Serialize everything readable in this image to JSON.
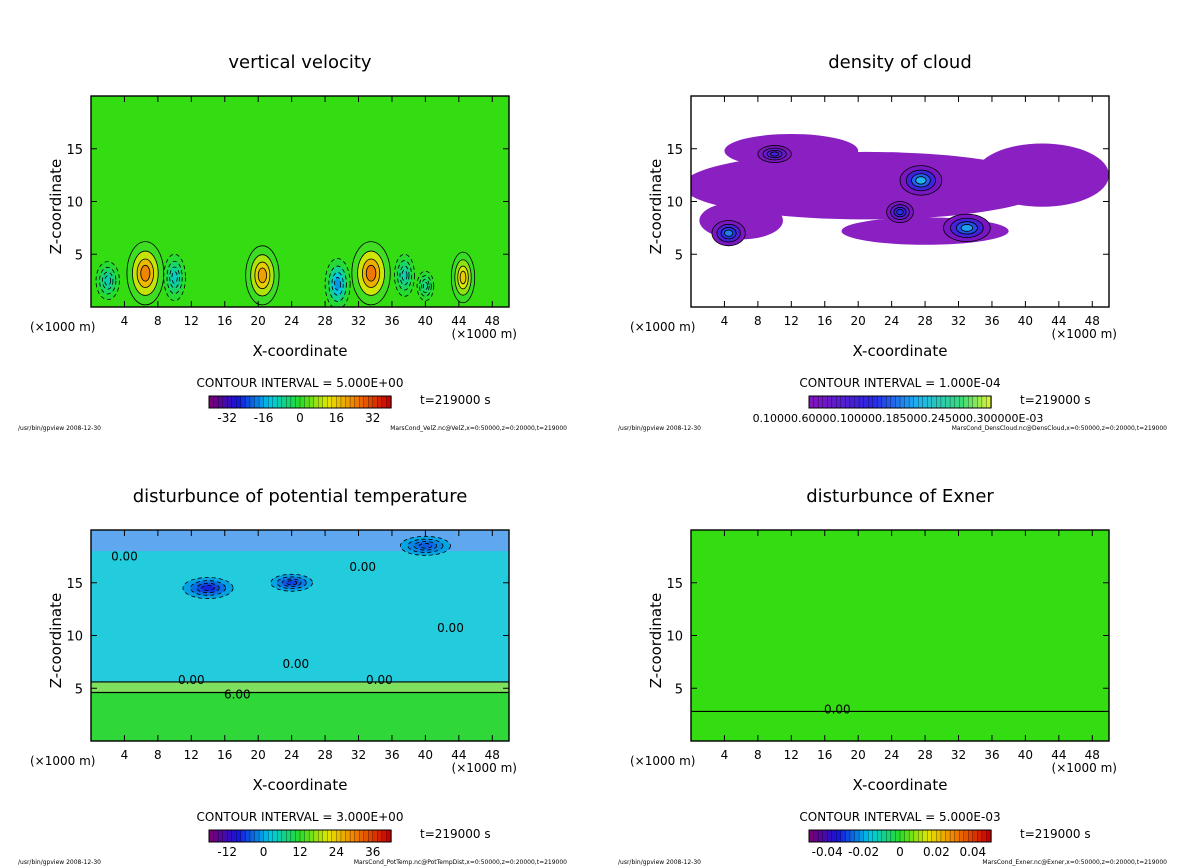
{
  "chart_data": [
    {
      "type": "heatmap",
      "title": "vertical velocity",
      "xlabel": "X-coordinate",
      "ylabel": "Z-coordinate",
      "x_unit": "(×1000 m)",
      "xlim": [
        0,
        50
      ],
      "ylim": [
        0,
        20
      ],
      "x_ticks": [
        4,
        8,
        12,
        16,
        20,
        24,
        28,
        32,
        36,
        40,
        44,
        48
      ],
      "y_ticks": [
        5,
        10,
        15
      ],
      "contour_interval": "CONTOUR INTERVAL = 5.000E+00",
      "time": "t=219000 s",
      "colorbar_ticks": [
        -32,
        -16,
        0,
        16,
        32
      ],
      "colorbar_tick_labels": [
        "-32",
        "-16",
        "0",
        "16",
        "32"
      ],
      "colorbar_range": [
        -40,
        40
      ],
      "colormap": "rainbow",
      "background_color": "#33dd11",
      "contour_labels": [],
      "cells": [
        {
          "x": 6.5,
          "z": 3.2,
          "rx": 2.2,
          "rz": 3.0,
          "value": 30
        },
        {
          "x": 20.5,
          "z": 3.0,
          "rx": 2.0,
          "rz": 2.8,
          "value": 26
        },
        {
          "x": 33.5,
          "z": 3.2,
          "rx": 2.3,
          "rz": 3.0,
          "value": 32
        },
        {
          "x": 44.5,
          "z": 2.8,
          "rx": 1.4,
          "rz": 2.4,
          "value": 20
        },
        {
          "x": 2.0,
          "z": 2.5,
          "rx": 1.4,
          "rz": 1.8,
          "value": -12
        },
        {
          "x": 10.0,
          "z": 2.8,
          "rx": 1.3,
          "rz": 2.2,
          "value": -14
        },
        {
          "x": 29.5,
          "z": 2.2,
          "rx": 1.5,
          "rz": 2.4,
          "value": -22
        },
        {
          "x": 37.5,
          "z": 3.0,
          "rx": 1.2,
          "rz": 2.0,
          "value": -12
        },
        {
          "x": 40.0,
          "z": 2.0,
          "rx": 1.0,
          "rz": 1.4,
          "value": -8
        }
      ],
      "footer_left": "/usr/bin/gpview  2008-12-30",
      "footer_right": "MarsCond_VelZ.nc@VelZ,x=0:50000,z=0:20000,t=219000"
    },
    {
      "type": "heatmap",
      "title": "density of cloud",
      "xlabel": "X-coordinate",
      "ylabel": "Z-coordinate",
      "x_unit": "(×1000 m)",
      "xlim": [
        0,
        50
      ],
      "ylim": [
        0,
        20
      ],
      "x_ticks": [
        4,
        8,
        12,
        16,
        20,
        24,
        28,
        32,
        36,
        40,
        44,
        48
      ],
      "y_ticks": [
        5,
        10,
        15
      ],
      "contour_interval": "CONTOUR INTERVAL = 1.000E-04",
      "time": "t=219000 s",
      "colorbar_ticks": [],
      "colorbar_tick_labels": [],
      "colorbar_overlap_text": "0.10000.60000.100000.185000.245000.300000E-03",
      "colorbar_range": [
        0,
        0.0004
      ],
      "colormap": "purple-to-green",
      "background_color": "#ffffff",
      "contour_labels": [],
      "cells": [
        {
          "x": 4.5,
          "z": 7.0,
          "rx": 2.0,
          "rz": 1.2,
          "value": 0.00025
        },
        {
          "x": 27.5,
          "z": 12.0,
          "rx": 2.5,
          "rz": 1.4,
          "value": 0.0003
        },
        {
          "x": 33.0,
          "z": 7.5,
          "rx": 2.8,
          "rz": 1.3,
          "value": 0.00028
        },
        {
          "x": 10.0,
          "z": 14.5,
          "rx": 2.0,
          "rz": 0.8,
          "value": 0.00012
        },
        {
          "x": 25.0,
          "z": 9.0,
          "rx": 1.6,
          "rz": 1.0,
          "value": 0.00018
        }
      ],
      "footer_left": "/usr/bin/gpview  2008-12-30",
      "footer_right": "MarsCond_DensCloud.nc@DensCloud,x=0:50000,z=0:20000,t=219000"
    },
    {
      "type": "heatmap",
      "title": "disturbunce of potential temperature",
      "xlabel": "X-coordinate",
      "ylabel": "Z-coordinate",
      "x_unit": "(×1000 m)",
      "xlim": [
        0,
        50
      ],
      "ylim": [
        0,
        20
      ],
      "x_ticks": [
        4,
        8,
        12,
        16,
        20,
        24,
        28,
        32,
        36,
        40,
        44,
        48
      ],
      "y_ticks": [
        5,
        10,
        15
      ],
      "contour_interval": "CONTOUR INTERVAL = 3.000E+00",
      "time": "t=219000 s",
      "colorbar_ticks": [
        -12,
        0,
        12,
        24,
        36
      ],
      "colorbar_tick_labels": [
        "-12",
        "0",
        "12",
        "24",
        "36"
      ],
      "colorbar_range": [
        -18,
        42
      ],
      "colormap": "rainbow",
      "background_color": "#22ccdd",
      "contour_labels": [
        {
          "x": 4.0,
          "z": 17.5,
          "text": "0.00"
        },
        {
          "x": 32.5,
          "z": 16.5,
          "text": "0.00"
        },
        {
          "x": 43.0,
          "z": 10.7,
          "text": "0.00"
        },
        {
          "x": 24.5,
          "z": 7.3,
          "text": "0.00"
        },
        {
          "x": 12.0,
          "z": 5.8,
          "text": "0.00"
        },
        {
          "x": 34.5,
          "z": 5.8,
          "text": "0.00"
        },
        {
          "x": 17.5,
          "z": 4.4,
          "text": "6.00"
        }
      ],
      "cells": [
        {
          "x": 14.0,
          "z": 14.5,
          "rx": 3.0,
          "rz": 1.0,
          "value": -10
        },
        {
          "x": 24.0,
          "z": 15.0,
          "rx": 2.5,
          "rz": 0.8,
          "value": -8
        },
        {
          "x": 40.0,
          "z": 18.5,
          "rx": 3.0,
          "rz": 0.9,
          "value": -6
        }
      ],
      "footer_left": "/usr/bin/gpview  2008-12-30",
      "footer_right": "MarsCond_PotTemp.nc@PotTempDist,x=0:50000,z=0:20000,t=219000"
    },
    {
      "type": "heatmap",
      "title": "disturbunce of Exner",
      "xlabel": "X-coordinate",
      "ylabel": "Z-coordinate",
      "x_unit": "(×1000 m)",
      "xlim": [
        0,
        50
      ],
      "ylim": [
        0,
        20
      ],
      "x_ticks": [
        4,
        8,
        12,
        16,
        20,
        24,
        28,
        32,
        36,
        40,
        44,
        48
      ],
      "y_ticks": [
        5,
        10,
        15
      ],
      "contour_interval": "CONTOUR INTERVAL = 5.000E-03",
      "time": "t=219000 s",
      "colorbar_ticks": [
        -0.04,
        -0.02,
        0,
        0.02,
        0.04
      ],
      "colorbar_tick_labels": [
        "-0.04",
        "-0.02",
        "0",
        "0.02",
        "0.04"
      ],
      "colorbar_range": [
        -0.05,
        0.05
      ],
      "colormap": "rainbow",
      "background_color": "#33dd11",
      "contour_labels": [
        {
          "x": 17.5,
          "z": 3.0,
          "text": "0.00"
        }
      ],
      "cells": [],
      "footer_left": "/usr/bin/gpview  2008-12-30",
      "footer_right": "MarsCond_Exner.nc@Exner,x=0:50000,z=0:20000,t=219000"
    }
  ]
}
